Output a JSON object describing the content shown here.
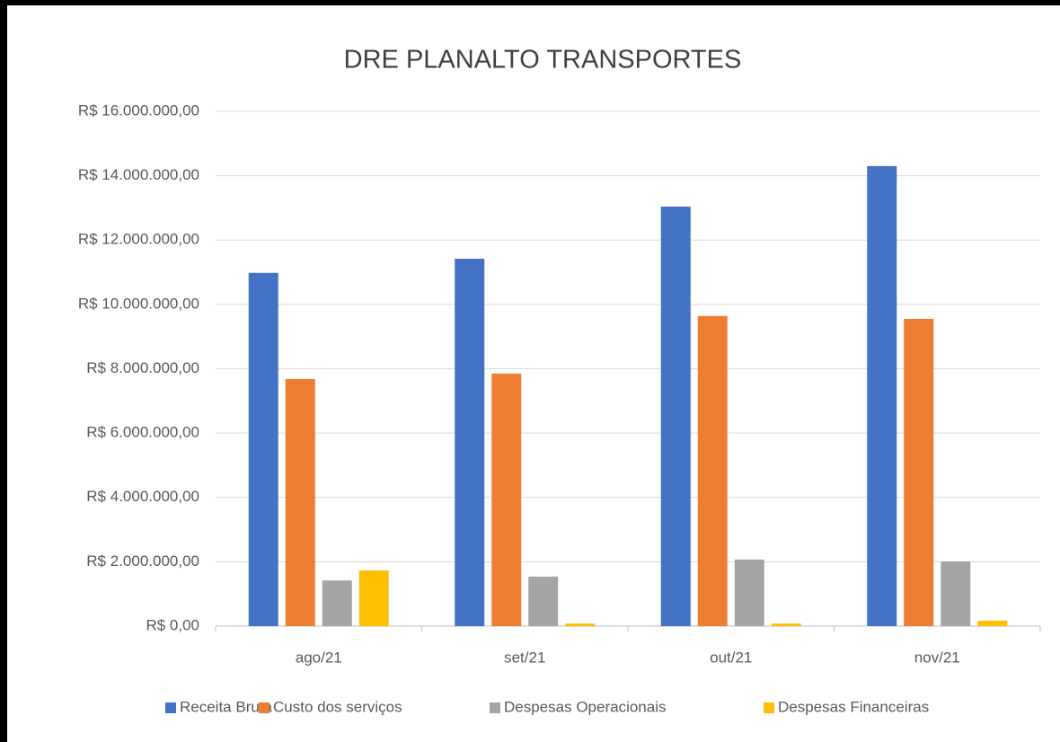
{
  "chart_data": {
    "type": "bar",
    "title": "DRE PLANALTO TRANSPORTES",
    "categories": [
      "ago/21",
      "set/21",
      "out/21",
      "nov/21"
    ],
    "series": [
      {
        "name": "Receita Bruta",
        "color": "#4472c4",
        "values": [
          10980000,
          11420000,
          13040000,
          14300000
        ]
      },
      {
        "name": "Custo dos serviços",
        "color": "#ed7d31",
        "values": [
          7680000,
          7850000,
          9640000,
          9550000
        ]
      },
      {
        "name": "Despesas Operacionais",
        "color": "#a5a5a5",
        "values": [
          1420000,
          1540000,
          2070000,
          2010000
        ]
      },
      {
        "name": "Despesas Financeiras",
        "color": "#ffc000",
        "values": [
          1730000,
          80000,
          80000,
          170000
        ]
      }
    ],
    "ylim": [
      0,
      16000000
    ],
    "yticks": [
      {
        "value": 0,
        "label": "R$ 0,00"
      },
      {
        "value": 2000000,
        "label": "R$ 2.000.000,00"
      },
      {
        "value": 4000000,
        "label": "R$ 4.000.000,00"
      },
      {
        "value": 6000000,
        "label": "R$ 6.000.000,00"
      },
      {
        "value": 8000000,
        "label": "R$ 8.000.000,00"
      },
      {
        "value": 10000000,
        "label": "R$ 10.000.000,00"
      },
      {
        "value": 12000000,
        "label": "R$ 12.000.000,00"
      },
      {
        "value": 14000000,
        "label": "R$ 14.000.000,00"
      },
      {
        "value": 16000000,
        "label": "R$ 16.000.000,00"
      }
    ],
    "grid": true,
    "legend": "bottom"
  }
}
